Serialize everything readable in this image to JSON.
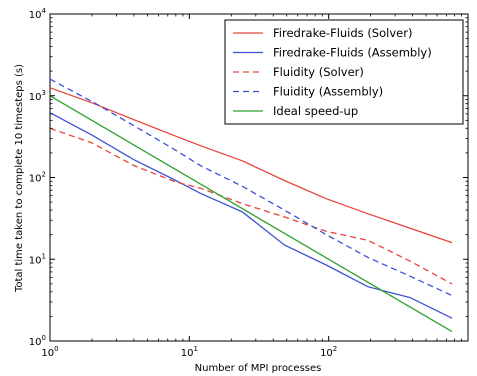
{
  "chart_data": {
    "type": "line",
    "title": "",
    "xlabel": "Number of MPI processes",
    "ylabel": "Total time taken to complete 10 timesteps (s)",
    "xscale": "log",
    "yscale": "log",
    "xlim": [
      1,
      1000
    ],
    "ylim": [
      1,
      10000
    ],
    "grid": false,
    "legend_position": "top-right",
    "x_ticks": [
      {
        "value": 1,
        "base": "10",
        "exp": "0"
      },
      {
        "value": 10,
        "base": "10",
        "exp": "1"
      },
      {
        "value": 100,
        "base": "10",
        "exp": "2"
      }
    ],
    "y_ticks": [
      {
        "value": 1,
        "base": "10",
        "exp": "0"
      },
      {
        "value": 10,
        "base": "10",
        "exp": "1"
      },
      {
        "value": 100,
        "base": "10",
        "exp": "2"
      },
      {
        "value": 1000,
        "base": "10",
        "exp": "3"
      },
      {
        "value": 10000,
        "base": "10",
        "exp": "4"
      }
    ],
    "series": [
      {
        "name": "Firedrake-Fluids (Solver)",
        "color": "#e8443a",
        "dash": "solid",
        "points": [
          [
            1,
            1250
          ],
          [
            2,
            820
          ],
          [
            4,
            510
          ],
          [
            8,
            320
          ],
          [
            12,
            245
          ],
          [
            24,
            160
          ],
          [
            48,
            92
          ],
          [
            96,
            55
          ],
          [
            192,
            36
          ],
          [
            384,
            24
          ],
          [
            768,
            16
          ]
        ]
      },
      {
        "name": "Firedrake-Fluids (Assembly)",
        "color": "#3e52d6",
        "dash": "solid",
        "points": [
          [
            1,
            620
          ],
          [
            2,
            330
          ],
          [
            4,
            165
          ],
          [
            8,
            92
          ],
          [
            12,
            64
          ],
          [
            24,
            38
          ],
          [
            48,
            15
          ],
          [
            96,
            8.5
          ],
          [
            192,
            4.6
          ],
          [
            384,
            3.4
          ],
          [
            768,
            1.9
          ]
        ]
      },
      {
        "name": "Fluidity (Solver)",
        "color": "#e8443a",
        "dash": "dashed",
        "points": [
          [
            1,
            400
          ],
          [
            2,
            265
          ],
          [
            4,
            140
          ],
          [
            8,
            88
          ],
          [
            12,
            74
          ],
          [
            24,
            48
          ],
          [
            48,
            33
          ],
          [
            96,
            22
          ],
          [
            192,
            17
          ],
          [
            384,
            9.5
          ],
          [
            768,
            5
          ]
        ]
      },
      {
        "name": "Fluidity (Assembly)",
        "color": "#3e52d6",
        "dash": "dashed",
        "points": [
          [
            1,
            1600
          ],
          [
            2,
            850
          ],
          [
            4,
            430
          ],
          [
            8,
            215
          ],
          [
            12,
            140
          ],
          [
            24,
            78
          ],
          [
            48,
            40
          ],
          [
            96,
            20
          ],
          [
            192,
            10.5
          ],
          [
            384,
            6.2
          ],
          [
            768,
            3.6
          ]
        ]
      },
      {
        "name": "Ideal speed-up",
        "color": "#2ca02c",
        "dash": "solid",
        "points": [
          [
            1,
            1000
          ],
          [
            768,
            1.302
          ]
        ]
      }
    ]
  }
}
